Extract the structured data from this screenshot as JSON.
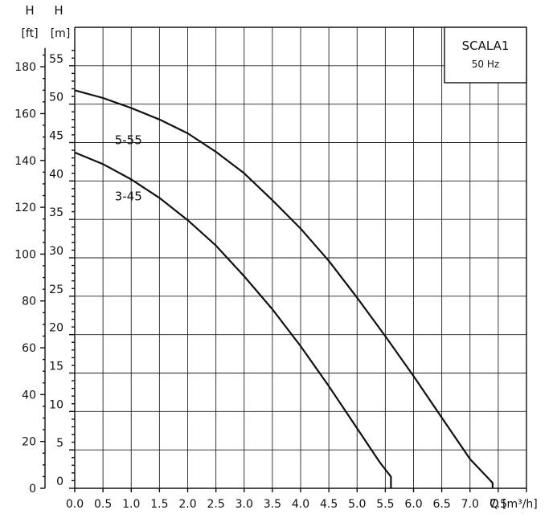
{
  "chart_data": {
    "type": "line",
    "title": "",
    "legend": {
      "title": "SCALA1",
      "subtitle": "50 Hz",
      "position": "top-right"
    },
    "x_axis": {
      "title": "Q",
      "unit": "[m³/h]",
      "lim": [
        0,
        8.0
      ],
      "ticks": [
        "0.0",
        "0.5",
        "1.0",
        "1.5",
        "2.0",
        "2.5",
        "3.0",
        "3.5",
        "4.0",
        "4.5",
        "5.0",
        "5.5",
        "6.0",
        "6.5",
        "7.0",
        "7.5"
      ]
    },
    "y_axis_m": {
      "title": "H",
      "unit": "[m]",
      "lim": [
        0,
        60
      ],
      "ticks": [
        "0",
        "5",
        "10",
        "15",
        "20",
        "25",
        "30",
        "35",
        "40",
        "45",
        "50",
        "55"
      ]
    },
    "y_axis_ft": {
      "title": "H",
      "unit": "[ft]",
      "ticks": [
        "0",
        "20",
        "40",
        "60",
        "80",
        "100",
        "120",
        "140",
        "160",
        "180"
      ]
    },
    "grid": true,
    "series": [
      {
        "name": "5-55",
        "x": [
          0,
          0.5,
          1.0,
          1.5,
          2.0,
          2.5,
          3.0,
          3.5,
          4.0,
          4.5,
          5.0,
          5.5,
          6.0,
          6.5,
          7.0,
          7.4,
          7.4
        ],
        "y": [
          51.8,
          50.8,
          49.5,
          48.0,
          46.2,
          43.8,
          41.0,
          37.5,
          33.8,
          29.6,
          24.8,
          19.8,
          14.6,
          9.2,
          3.8,
          0.7,
          0
        ]
      },
      {
        "name": "3-45",
        "x": [
          0,
          0.5,
          1.0,
          1.5,
          2.0,
          2.5,
          3.0,
          3.5,
          4.0,
          4.5,
          5.0,
          5.4,
          5.6,
          5.6
        ],
        "y": [
          43.7,
          42.2,
          40.2,
          37.8,
          34.9,
          31.6,
          27.6,
          23.3,
          18.5,
          13.3,
          7.8,
          3.4,
          1.5,
          0
        ]
      }
    ]
  }
}
